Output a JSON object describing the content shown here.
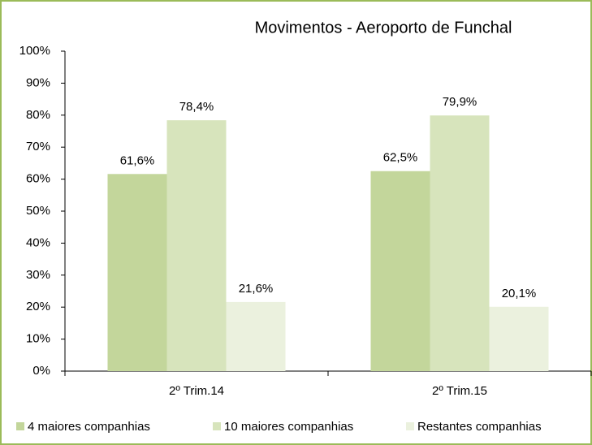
{
  "chart_data": {
    "type": "bar",
    "title": "Movimentos - Aeroporto de Funchal",
    "categories": [
      "2º Trim.14",
      "2º Trim.15"
    ],
    "series": [
      {
        "name": "4 maiores companhias",
        "color": "#c3d69b",
        "values": [
          61.6,
          62.5
        ],
        "value_labels": [
          "61,6%",
          "62,5%"
        ]
      },
      {
        "name": "10 maiores companhias",
        "color": "#d7e4bc",
        "values": [
          78.4,
          79.9
        ],
        "value_labels": [
          "78,4%",
          "79,9%"
        ]
      },
      {
        "name": "Restantes companhias",
        "color": "#ebf1de",
        "values": [
          21.6,
          20.1
        ],
        "value_labels": [
          "21,6%",
          "20,1%"
        ]
      }
    ],
    "ylim": [
      0,
      100
    ],
    "yticks": [
      {
        "value": 0,
        "label": "0%"
      },
      {
        "value": 10,
        "label": "10%"
      },
      {
        "value": 20,
        "label": "20%"
      },
      {
        "value": 30,
        "label": "30%"
      },
      {
        "value": 40,
        "label": "40%"
      },
      {
        "value": 50,
        "label": "50%"
      },
      {
        "value": 60,
        "label": "60%"
      },
      {
        "value": 70,
        "label": "70%"
      },
      {
        "value": 80,
        "label": "80%"
      },
      {
        "value": 90,
        "label": "90%"
      },
      {
        "value": 100,
        "label": "100%"
      }
    ],
    "legend": "bottom"
  }
}
